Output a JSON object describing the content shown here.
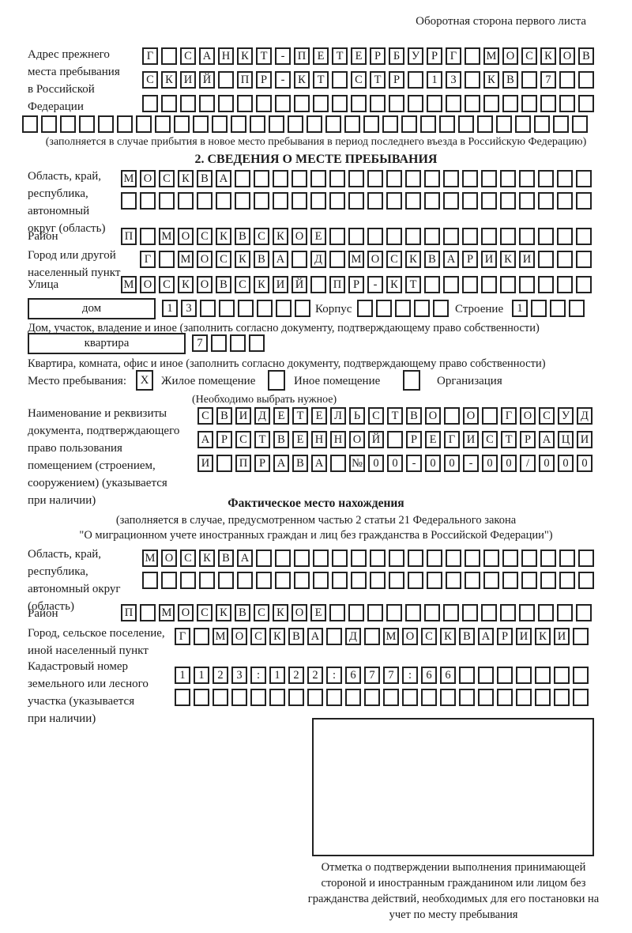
{
  "corner_note": "Оборотная сторона первого листа",
  "prev_address": {
    "label": "Адрес прежнего места пребывания в Российской Федерации",
    "row1": {
      "cells": "Г САНКТ-ПЕТЕРБУРГ МОСКОВ",
      "len": 24
    },
    "row2": {
      "cells": "СКИЙ ПР-КТ СТР 13 КВ 7",
      "len": 24
    },
    "row3": {
      "cells": "",
      "len": 24
    },
    "row4": {
      "cells": "",
      "len": 30
    },
    "note": "(заполняется в случае прибытия в новое место пребывания в период последнего въезда в Российскую Федерацию)"
  },
  "stay": {
    "title": "2. СВЕДЕНИЯ О МЕСТЕ ПРЕБЫВАНИЯ",
    "region_label": "Область, край, республика, автономный округ (область)",
    "region_row1": {
      "cells": "МОСКВА",
      "len": 25
    },
    "region_row2": {
      "cells": "",
      "len": 25
    },
    "district_label": "Район",
    "district_row": {
      "cells": "П МОСКВСКОЕ",
      "len": 25
    },
    "city_label": "Город или другой населенный пункт",
    "city_row": {
      "cells": "Г МОСКВА Д МОСКВАРИКИ",
      "len": 24
    },
    "street_label": "Улица",
    "street_row": {
      "cells": "МОСКОВСКИЙ ПР-КТ",
      "len": 25
    },
    "house_field_label": "дом",
    "house_row": {
      "cells": "13",
      "len": 8
    },
    "korpus_label": "Корпус",
    "korpus_row": {
      "cells": "",
      "len": 5
    },
    "stroenie_label": "Строение",
    "stroenie_row": {
      "cells": "1",
      "len": 4
    },
    "house_note": "Дом, участок, владение и иное (заполнить согласно документу, подтверждающему право собственности)",
    "apt_field_label": "квартира",
    "apt_row": {
      "cells": "7",
      "len": 4
    },
    "apt_note": "Квартира, комната, офис и иное (заполнить согласно документу, подтверждающему право собственности)",
    "residence_label": "Место пребывания:",
    "residence_options": [
      {
        "label": "Жилое помещение",
        "mark": "X"
      },
      {
        "label": "Иное помещение",
        "mark": ""
      },
      {
        "label": "Организация",
        "mark": ""
      }
    ],
    "residence_note": "(Необходимо выбрать нужное)",
    "doc_label": "Наименование и реквизиты документа, подтверждающего право пользования помещением (строением, сооружением) (указывается при наличии)",
    "doc_row1": {
      "cells": "СВИДЕТЕЛЬСТВО О ГОСУД",
      "len": 21
    },
    "doc_row2": {
      "cells": "АРСТВЕННОЙ РЕГИСТРАЦИ",
      "len": 21
    },
    "doc_row3": {
      "cells": "И ПРАВА №00-00-00/000",
      "len": 21
    }
  },
  "actual": {
    "title": "Фактическое место нахождения",
    "note1": "(заполняется в случае, предусмотренном частью 2 статьи 21 Федерального закона",
    "note2": "\"О миграционном учете иностранных граждан и лиц без гражданства в Российской Федерации\")",
    "region_label": "Область, край, республика, автономный округ (область)",
    "region_row1": {
      "cells": "МОСКВА",
      "len": 24
    },
    "region_row2": {
      "cells": "",
      "len": 24
    },
    "district_label": "Район",
    "district_row": {
      "cells": "П МОСКВСКОЕ",
      "len": 25
    },
    "city_label": "Город, сельское поселение, иной населенный пункт",
    "city_row": {
      "cells": "Г МОСКВА Д МОСКВАРИКИ",
      "len": 22
    },
    "cadastre_label": "Кадастровый номер земельного или лесного участка (указывается при наличии)",
    "cadastre_row1": {
      "cells": "1123:122:677:66",
      "len": 22
    },
    "cadastre_row2": {
      "cells": "",
      "len": 22
    },
    "stamp_caption": "Отметка о подтверждении выполнения принимающей стороной и иностранным гражданином или лицом без гражданства действий, необходимых для его постановки на учет по месту пребывания"
  }
}
